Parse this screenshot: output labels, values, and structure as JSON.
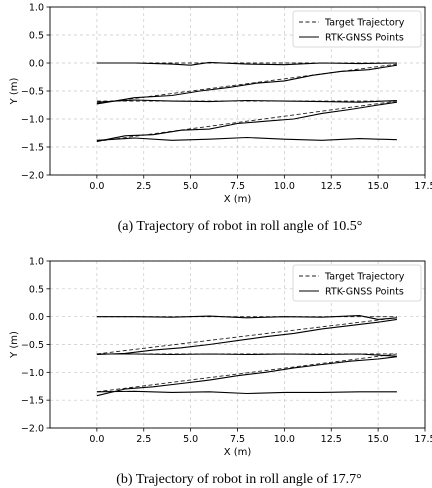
{
  "chart_data": [
    {
      "type": "line",
      "caption": "(a) Trajectory of robot in roll angle of 10.5°",
      "xlabel": "X (m)",
      "ylabel": "Y (m)",
      "xlim": [
        -2.5,
        17.5
      ],
      "ylim": [
        -2.0,
        1.0
      ],
      "xticks": [
        "0.0",
        "2.5",
        "5.0",
        "7.5",
        "10.0",
        "12.5",
        "15.0",
        "17.5"
      ],
      "yticks": [
        "1.0",
        "0.5",
        "0.0",
        "−0.5",
        "−1.0",
        "−1.5",
        "−2.0"
      ],
      "grid": true,
      "legend_position": "top-right",
      "series": [
        {
          "name": "Target Trajectory",
          "style": "dashed",
          "x": [
            0,
            16,
            0,
            16,
            0,
            16,
            0,
            16
          ],
          "y": [
            0.0,
            0.0,
            -0.72,
            -0.02,
            -0.68,
            -0.68,
            -1.4,
            -0.68
          ]
        },
        {
          "name": "RTK-GNSS Points",
          "style": "solid",
          "segments": [
            {
              "x": [
                0,
                2,
                4,
                5,
                6,
                8,
                10,
                12,
                14,
                16
              ],
              "y": [
                0.0,
                0.0,
                -0.02,
                -0.04,
                0.01,
                -0.02,
                -0.03,
                0.0,
                -0.01,
                0.0
              ]
            },
            {
              "x": [
                0,
                2,
                4,
                5.5,
                7,
                8.5,
                10,
                11.5,
                13,
                14.5,
                16
              ],
              "y": [
                -0.73,
                -0.62,
                -0.58,
                -0.5,
                -0.44,
                -0.36,
                -0.32,
                -0.22,
                -0.15,
                -0.12,
                -0.04
              ]
            },
            {
              "x": [
                0,
                2,
                4,
                6,
                8,
                10,
                12,
                14,
                16
              ],
              "y": [
                -0.7,
                -0.66,
                -0.68,
                -0.69,
                -0.67,
                -0.68,
                -0.69,
                -0.7,
                -0.67
              ]
            },
            {
              "x": [
                0,
                1.5,
                3,
                4.5,
                6,
                7.5,
                9,
                10.5,
                12,
                13.5,
                15,
                16
              ],
              "y": [
                -1.4,
                -1.3,
                -1.28,
                -1.2,
                -1.18,
                -1.08,
                -1.04,
                -1.0,
                -0.9,
                -0.83,
                -0.75,
                -0.7
              ]
            },
            {
              "x": [
                0,
                2,
                4,
                6,
                8,
                10,
                12,
                14,
                16
              ],
              "y": [
                -1.38,
                -1.34,
                -1.38,
                -1.36,
                -1.33,
                -1.36,
                -1.38,
                -1.35,
                -1.37
              ]
            }
          ]
        }
      ]
    },
    {
      "type": "line",
      "caption": "(b) Trajectory of robot in roll angle of 17.7°",
      "xlabel": "X (m)",
      "ylabel": "Y (m)",
      "xlim": [
        -2.5,
        17.5
      ],
      "ylim": [
        -2.0,
        1.0
      ],
      "xticks": [
        "0.0",
        "2.5",
        "5.0",
        "7.5",
        "10.0",
        "12.5",
        "15.0",
        "17.5"
      ],
      "yticks": [
        "1.0",
        "0.5",
        "0.0",
        "−0.5",
        "−1.0",
        "−1.5",
        "−2.0"
      ],
      "grid": true,
      "legend_position": "top-right",
      "series": [
        {
          "name": "Target Trajectory",
          "style": "dashed",
          "x": [
            0,
            16,
            0,
            16,
            0,
            16,
            0,
            16
          ],
          "y": [
            0.0,
            0.0,
            -0.67,
            -0.02,
            -0.67,
            -0.67,
            -1.35,
            -0.67
          ]
        },
        {
          "name": "RTK-GNSS Points",
          "style": "solid",
          "segments": [
            {
              "x": [
                0,
                2,
                4,
                6,
                8,
                10,
                12,
                14,
                15,
                16
              ],
              "y": [
                0.0,
                0.0,
                -0.01,
                0.01,
                -0.02,
                0.0,
                -0.01,
                0.02,
                -0.05,
                -0.02
              ]
            },
            {
              "x": [
                0,
                1.5,
                3,
                4.5,
                6,
                7.5,
                9,
                10.5,
                12,
                13.5,
                15,
                16
              ],
              "y": [
                -0.68,
                -0.66,
                -0.6,
                -0.56,
                -0.5,
                -0.43,
                -0.36,
                -0.3,
                -0.22,
                -0.16,
                -0.1,
                -0.05
              ]
            },
            {
              "x": [
                0,
                2,
                4,
                6,
                8,
                10,
                12,
                14,
                16
              ],
              "y": [
                -0.67,
                -0.67,
                -0.68,
                -0.67,
                -0.68,
                -0.67,
                -0.68,
                -0.67,
                -0.71
              ]
            },
            {
              "x": [
                0,
                1.5,
                3,
                4.5,
                6,
                7.5,
                9,
                10.5,
                12,
                13.5,
                15,
                16
              ],
              "y": [
                -1.42,
                -1.3,
                -1.26,
                -1.2,
                -1.14,
                -1.06,
                -1.0,
                -0.92,
                -0.86,
                -0.8,
                -0.76,
                -0.72
              ]
            },
            {
              "x": [
                0,
                2,
                4,
                6,
                8,
                10,
                12,
                14,
                16
              ],
              "y": [
                -1.35,
                -1.34,
                -1.36,
                -1.35,
                -1.38,
                -1.36,
                -1.36,
                -1.35,
                -1.35
              ]
            }
          ]
        }
      ]
    }
  ]
}
